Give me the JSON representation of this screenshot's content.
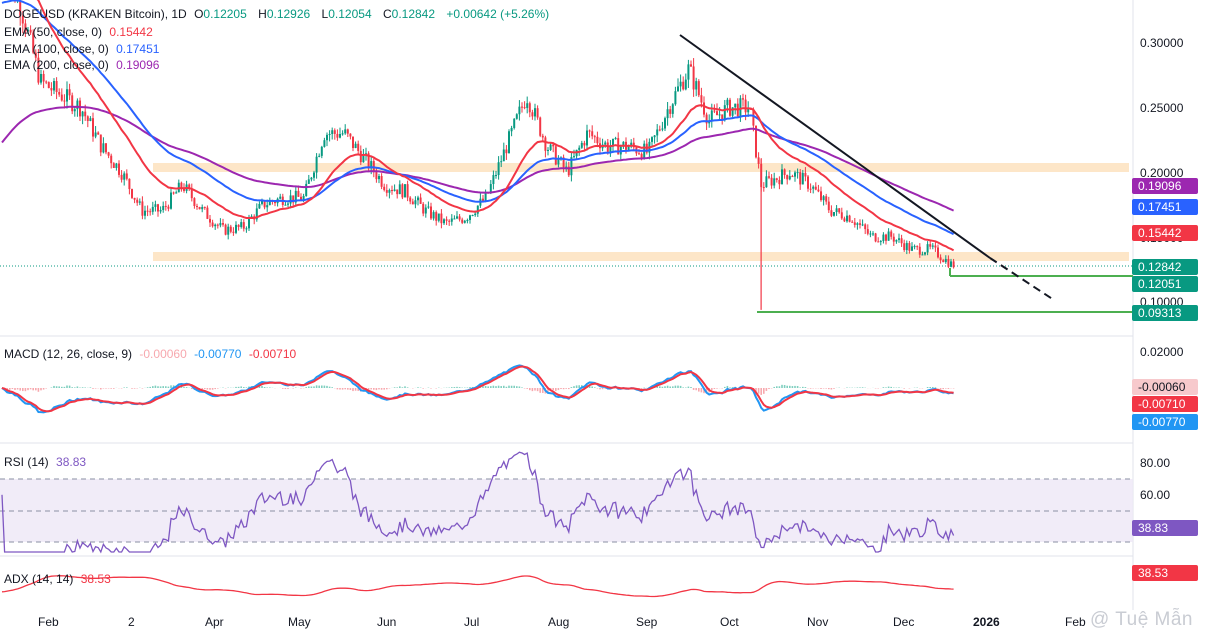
{
  "header": {
    "symbol": "DOGEUSD (KRAKEN Bitcoin), 1D",
    "o_label": "O",
    "o": "0.12205",
    "h_label": "H",
    "h": "0.12926",
    "l_label": "L",
    "l": "0.12054",
    "c_label": "C",
    "c": "0.12842",
    "change": "+0.00642 (+5.26%)"
  },
  "ema": [
    {
      "label": "EMA (50, close, 0)",
      "value": "0.15442",
      "color": "#f23645"
    },
    {
      "label": "EMA (100, close, 0)",
      "value": "0.17451",
      "color": "#2962ff"
    },
    {
      "label": "EMA (200, close, 0)",
      "value": "0.19096",
      "color": "#9c27b0"
    }
  ],
  "price_axis": [
    "0.30000",
    "0.25000",
    "0.20000",
    "0.15000",
    "0.10000"
  ],
  "price_tags": [
    {
      "value": "0.19096",
      "color": "#9c27b0"
    },
    {
      "value": "0.17451",
      "color": "#2962ff"
    },
    {
      "value": "0.15442",
      "color": "#f23645"
    },
    {
      "value": "0.12842",
      "color": "#089981"
    },
    {
      "value": "0.12051",
      "color": "#089981"
    },
    {
      "value": "0.09313",
      "color": "#089981"
    }
  ],
  "macd": {
    "label": "MACD (12, 26, close, 9)",
    "hist": "-0.00060",
    "macd": "-0.00770",
    "signal": "-0.00710",
    "axis": "0.02000",
    "tags": [
      {
        "value": "-0.00060",
        "color": "#f7c9cc",
        "text": "#131722"
      },
      {
        "value": "-0.00710",
        "color": "#f23645",
        "text": "#ffffff"
      },
      {
        "value": "-0.00770",
        "color": "#2196f3",
        "text": "#ffffff"
      }
    ]
  },
  "rsi": {
    "label": "RSI (14)",
    "value": "38.83",
    "axis": [
      "80.00",
      "60.00"
    ],
    "tag_color": "#7e57c2"
  },
  "adx": {
    "label": "ADX (14, 14)",
    "value": "38.53",
    "tag_color": "#f23645"
  },
  "time_axis": [
    "Feb",
    "2",
    "Apr",
    "May",
    "Jun",
    "Jul",
    "Aug",
    "Sep",
    "Oct",
    "Nov",
    "Dec",
    "2026",
    "Feb"
  ],
  "watermark": "@ Tuệ Mẫn",
  "chart_data": {
    "type": "candlestick",
    "title": "DOGEUSD (KRAKEN Bitcoin), 1D",
    "price_range": [
      0.075,
      0.335
    ],
    "close_path": [
      [
        "2025-01-20",
        0.36
      ],
      [
        "2025-01-27",
        0.33
      ],
      [
        "2025-02-03",
        0.27
      ],
      [
        "2025-02-10",
        0.26
      ],
      [
        "2025-02-17",
        0.25
      ],
      [
        "2025-02-24",
        0.22
      ],
      [
        "2025-03-03",
        0.2
      ],
      [
        "2025-03-10",
        0.17
      ],
      [
        "2025-03-17",
        0.17
      ],
      [
        "2025-03-24",
        0.19
      ],
      [
        "2025-03-31",
        0.17
      ],
      [
        "2025-04-07",
        0.155
      ],
      [
        "2025-04-14",
        0.157
      ],
      [
        "2025-04-21",
        0.175
      ],
      [
        "2025-04-28",
        0.18
      ],
      [
        "2025-05-05",
        0.18
      ],
      [
        "2025-05-12",
        0.23
      ],
      [
        "2025-05-19",
        0.23
      ],
      [
        "2025-05-26",
        0.21
      ],
      [
        "2025-06-02",
        0.19
      ],
      [
        "2025-06-09",
        0.185
      ],
      [
        "2025-06-16",
        0.17
      ],
      [
        "2025-06-23",
        0.16
      ],
      [
        "2025-06-30",
        0.165
      ],
      [
        "2025-07-07",
        0.18
      ],
      [
        "2025-07-14",
        0.22
      ],
      [
        "2025-07-21",
        0.26
      ],
      [
        "2025-07-28",
        0.22
      ],
      [
        "2025-08-04",
        0.2
      ],
      [
        "2025-08-11",
        0.23
      ],
      [
        "2025-08-18",
        0.22
      ],
      [
        "2025-08-25",
        0.22
      ],
      [
        "2025-09-01",
        0.215
      ],
      [
        "2025-09-08",
        0.25
      ],
      [
        "2025-09-15",
        0.28
      ],
      [
        "2025-09-22",
        0.24
      ],
      [
        "2025-09-29",
        0.25
      ],
      [
        "2025-10-06",
        0.25
      ],
      [
        "2025-10-10",
        0.19
      ],
      [
        "2025-10-20",
        0.2
      ],
      [
        "2025-10-27",
        0.19
      ],
      [
        "2025-11-03",
        0.17
      ],
      [
        "2025-11-10",
        0.165
      ],
      [
        "2025-11-17",
        0.15
      ],
      [
        "2025-11-24",
        0.15
      ],
      [
        "2025-12-01",
        0.14
      ],
      [
        "2025-12-08",
        0.14
      ],
      [
        "2025-12-15",
        0.128
      ]
    ],
    "ema_50_last": 0.15442,
    "ema_100_last": 0.17451,
    "ema_200_last": 0.19096,
    "support_zones": [
      0.203,
      0.133
    ],
    "horizontal_lines": [
      0.12051,
      0.09313
    ],
    "trendline": [
      [
        "2025-09-13",
        0.305
      ],
      [
        "2026-01-15",
        0.102
      ]
    ],
    "macd": {
      "hist": -0.0006,
      "macd": -0.0077,
      "signal": -0.0071
    },
    "rsi": {
      "last": 38.83,
      "levels": [
        70,
        50,
        30
      ]
    },
    "adx": {
      "last": 38.53
    }
  }
}
